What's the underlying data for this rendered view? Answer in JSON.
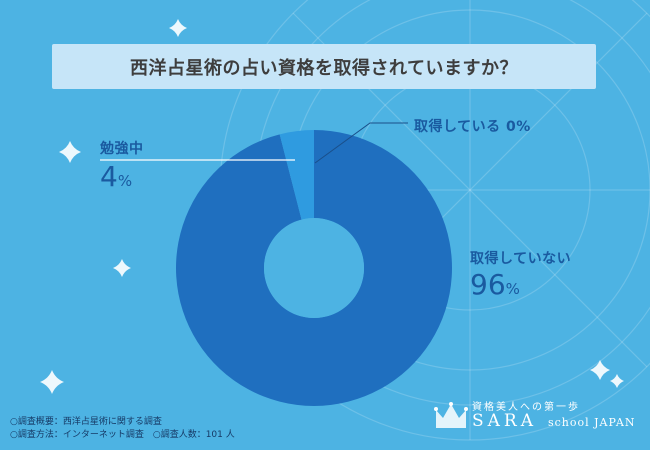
{
  "colors": {
    "background": "#4db3e3",
    "title_bg": "#c6e5f8",
    "slice_main": "#1f6fbf",
    "slice_minor": "#2f9be0",
    "label_text": "#1a5aa0",
    "sparkle": "#ffffff"
  },
  "title": "西洋占星術の占い資格を取得されていますか？",
  "chart_data": {
    "type": "pie",
    "donut": true,
    "title": "西洋占星術の占い資格を取得されていますか？",
    "slices": [
      {
        "label": "取得している",
        "value": 0,
        "display": "0%"
      },
      {
        "label": "勉強中",
        "value": 4,
        "display": "4%"
      },
      {
        "label": "取得していない",
        "value": 96,
        "display": "96%"
      }
    ],
    "legend": "none"
  },
  "labels": {
    "studying_name": "勉強中",
    "studying_pct": "4",
    "acquired_text": "取得している 0%",
    "not_acquired_name": "取得していない",
    "not_acquired_pct": "96",
    "pct_sign": "%"
  },
  "footer": {
    "line1": "○調査概要：西洋占星術に関する調査",
    "line2": "○調査方法：インターネット調査　○調査人数：101 人"
  },
  "brand": {
    "tagline": "資格美人への第一歩",
    "name": "SARA",
    "school": "school JAPAN"
  },
  "icons": [
    "sparkle-icon",
    "crown-icon"
  ]
}
